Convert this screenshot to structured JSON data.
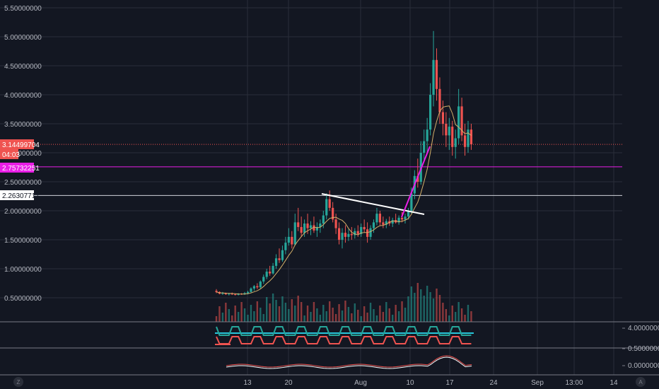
{
  "chart_data": {
    "type": "candlestick",
    "price_axis": {
      "ticks": [
        "5.50000000",
        "5.00000000",
        "4.50000000",
        "4.00000000",
        "3.50000000",
        "3.00000000",
        "2.50000000",
        "2.00000000",
        "1.50000000",
        "1.00000000",
        "0.50000000"
      ],
      "tick_values": [
        5.5,
        5.0,
        4.5,
        4.0,
        3.5,
        3.0,
        2.5,
        2.0,
        1.5,
        1.0,
        0.5
      ],
      "range": [
        0.0,
        5.55
      ]
    },
    "time_axis": {
      "ticks": [
        "13",
        "20",
        "Aug",
        "10",
        "17",
        "24",
        "Sep",
        "13:00",
        "14"
      ]
    },
    "price_tags": [
      {
        "value": "3.14499704",
        "price": 3.145,
        "bg": "#ef5350",
        "fg": "#ffffff"
      },
      {
        "value": "04:03",
        "bg": "#ef5350",
        "fg": "#ffffff"
      },
      {
        "value": "2.75732251",
        "price": 2.757,
        "bg": "#e91ee6",
        "fg": "#ffffff"
      },
      {
        "value": "2.26307717",
        "price": 2.263,
        "bg": "#ffffff",
        "fg": "#131722"
      }
    ],
    "horizontal_lines": [
      {
        "price": 3.145,
        "color": "#ef5350",
        "style": "dotted"
      },
      {
        "price": 2.757,
        "color": "#e91ee6",
        "style": "solid"
      },
      {
        "price": 2.263,
        "color": "#d1d4dc",
        "style": "solid"
      }
    ],
    "trendlines": [
      {
        "color": "#ffffff",
        "points": [
          [
            "Jul 25",
            2.3
          ],
          [
            "Aug 14",
            1.95
          ]
        ]
      },
      {
        "color": "#e91ee6",
        "points": [
          [
            "Aug 9",
            1.85
          ],
          [
            "Aug 14",
            3.0
          ]
        ]
      }
    ],
    "indicator_axis_labels": [
      "4.00000000",
      "0.50000000",
      "0.00000000"
    ],
    "colors": {
      "up": "#26a69a",
      "down": "#ef5350",
      "ma": "#d4b06a",
      "grid": "#2a2e39",
      "bg": "#131722",
      "panel_sep": "#787b86"
    },
    "tz_label": "Z",
    "auto_label": "A",
    "candles": [
      [
        0.62,
        0.65,
        0.58,
        0.6
      ],
      [
        0.6,
        0.61,
        0.56,
        0.57
      ],
      [
        0.57,
        0.6,
        0.55,
        0.58
      ],
      [
        0.58,
        0.59,
        0.55,
        0.56
      ],
      [
        0.56,
        0.58,
        0.54,
        0.57
      ],
      [
        0.57,
        0.59,
        0.55,
        0.56
      ],
      [
        0.56,
        0.57,
        0.54,
        0.55
      ],
      [
        0.55,
        0.58,
        0.54,
        0.57
      ],
      [
        0.57,
        0.58,
        0.55,
        0.56
      ],
      [
        0.56,
        0.6,
        0.55,
        0.58
      ],
      [
        0.58,
        0.62,
        0.56,
        0.6
      ],
      [
        0.6,
        0.68,
        0.59,
        0.66
      ],
      [
        0.66,
        0.72,
        0.62,
        0.7
      ],
      [
        0.7,
        0.75,
        0.65,
        0.68
      ],
      [
        0.68,
        0.8,
        0.66,
        0.78
      ],
      [
        0.78,
        0.9,
        0.74,
        0.86
      ],
      [
        0.86,
        1.0,
        0.82,
        0.95
      ],
      [
        0.95,
        1.05,
        0.88,
        0.92
      ],
      [
        0.92,
        1.1,
        0.9,
        1.05
      ],
      [
        1.05,
        1.25,
        1.0,
        1.18
      ],
      [
        1.18,
        1.35,
        1.1,
        1.15
      ],
      [
        1.15,
        1.4,
        1.12,
        1.32
      ],
      [
        1.32,
        1.55,
        1.25,
        1.45
      ],
      [
        1.45,
        1.7,
        1.4,
        1.55
      ],
      [
        1.55,
        1.65,
        1.35,
        1.42
      ],
      [
        1.42,
        1.95,
        1.4,
        1.8
      ],
      [
        1.8,
        2.05,
        1.65,
        1.72
      ],
      [
        1.72,
        1.9,
        1.55,
        1.62
      ],
      [
        1.62,
        1.85,
        1.55,
        1.78
      ],
      [
        1.78,
        1.95,
        1.6,
        1.7
      ],
      [
        1.7,
        1.82,
        1.58,
        1.75
      ],
      [
        1.75,
        1.9,
        1.62,
        1.66
      ],
      [
        1.66,
        1.8,
        1.55,
        1.72
      ],
      [
        1.72,
        1.85,
        1.62,
        1.78
      ],
      [
        1.78,
        2.0,
        1.7,
        1.92
      ],
      [
        1.92,
        2.3,
        1.85,
        2.2
      ],
      [
        2.2,
        2.35,
        2.0,
        2.05
      ],
      [
        2.05,
        2.15,
        1.8,
        1.85
      ],
      [
        1.85,
        1.95,
        1.6,
        1.7
      ],
      [
        1.7,
        1.8,
        1.42,
        1.5
      ],
      [
        1.5,
        1.7,
        1.35,
        1.62
      ],
      [
        1.62,
        1.75,
        1.45,
        1.55
      ],
      [
        1.55,
        1.68,
        1.48,
        1.6
      ],
      [
        1.6,
        1.72,
        1.5,
        1.58
      ],
      [
        1.58,
        1.7,
        1.52,
        1.65
      ],
      [
        1.65,
        1.75,
        1.55,
        1.6
      ],
      [
        1.6,
        1.78,
        1.55,
        1.72
      ],
      [
        1.72,
        1.85,
        1.62,
        1.68
      ],
      [
        1.68,
        1.8,
        1.45,
        1.55
      ],
      [
        1.55,
        1.75,
        1.5,
        1.7
      ],
      [
        1.7,
        1.85,
        1.62,
        1.8
      ],
      [
        1.8,
        2.05,
        1.75,
        1.95
      ],
      [
        1.95,
        2.0,
        1.75,
        1.8
      ],
      [
        1.8,
        1.9,
        1.7,
        1.76
      ],
      [
        1.76,
        1.86,
        1.7,
        1.82
      ],
      [
        1.82,
        1.9,
        1.74,
        1.78
      ],
      [
        1.78,
        1.88,
        1.72,
        1.84
      ],
      [
        1.84,
        1.95,
        1.78,
        1.8
      ],
      [
        1.8,
        1.92,
        1.76,
        1.88
      ],
      [
        1.88,
        1.98,
        1.8,
        1.85
      ],
      [
        1.85,
        1.95,
        1.78,
        1.9
      ],
      [
        1.9,
        2.05,
        1.85,
        2.0
      ],
      [
        2.0,
        2.4,
        1.95,
        2.3
      ],
      [
        2.3,
        2.7,
        2.2,
        2.6
      ],
      [
        2.6,
        2.9,
        2.4,
        2.5
      ],
      [
        2.5,
        3.2,
        2.45,
        3.0
      ],
      [
        3.0,
        3.4,
        2.85,
        3.2
      ],
      [
        3.2,
        3.6,
        3.0,
        3.4
      ],
      [
        3.4,
        4.2,
        3.3,
        4.0
      ],
      [
        4.0,
        5.1,
        3.8,
        4.6
      ],
      [
        4.6,
        4.8,
        3.9,
        4.1
      ],
      [
        4.1,
        4.3,
        3.5,
        3.7
      ],
      [
        3.7,
        3.9,
        3.3,
        3.5
      ],
      [
        3.5,
        3.7,
        3.1,
        3.3
      ],
      [
        3.3,
        3.6,
        3.05,
        3.45
      ],
      [
        3.45,
        3.55,
        2.95,
        3.1
      ],
      [
        3.1,
        3.4,
        2.9,
        3.25
      ],
      [
        3.25,
        4.1,
        3.15,
        3.8
      ],
      [
        3.8,
        3.95,
        3.2,
        3.3
      ],
      [
        3.3,
        3.5,
        2.95,
        3.1
      ],
      [
        3.1,
        3.55,
        3.0,
        3.4
      ],
      [
        3.4,
        3.5,
        3.05,
        3.145
      ]
    ]
  }
}
